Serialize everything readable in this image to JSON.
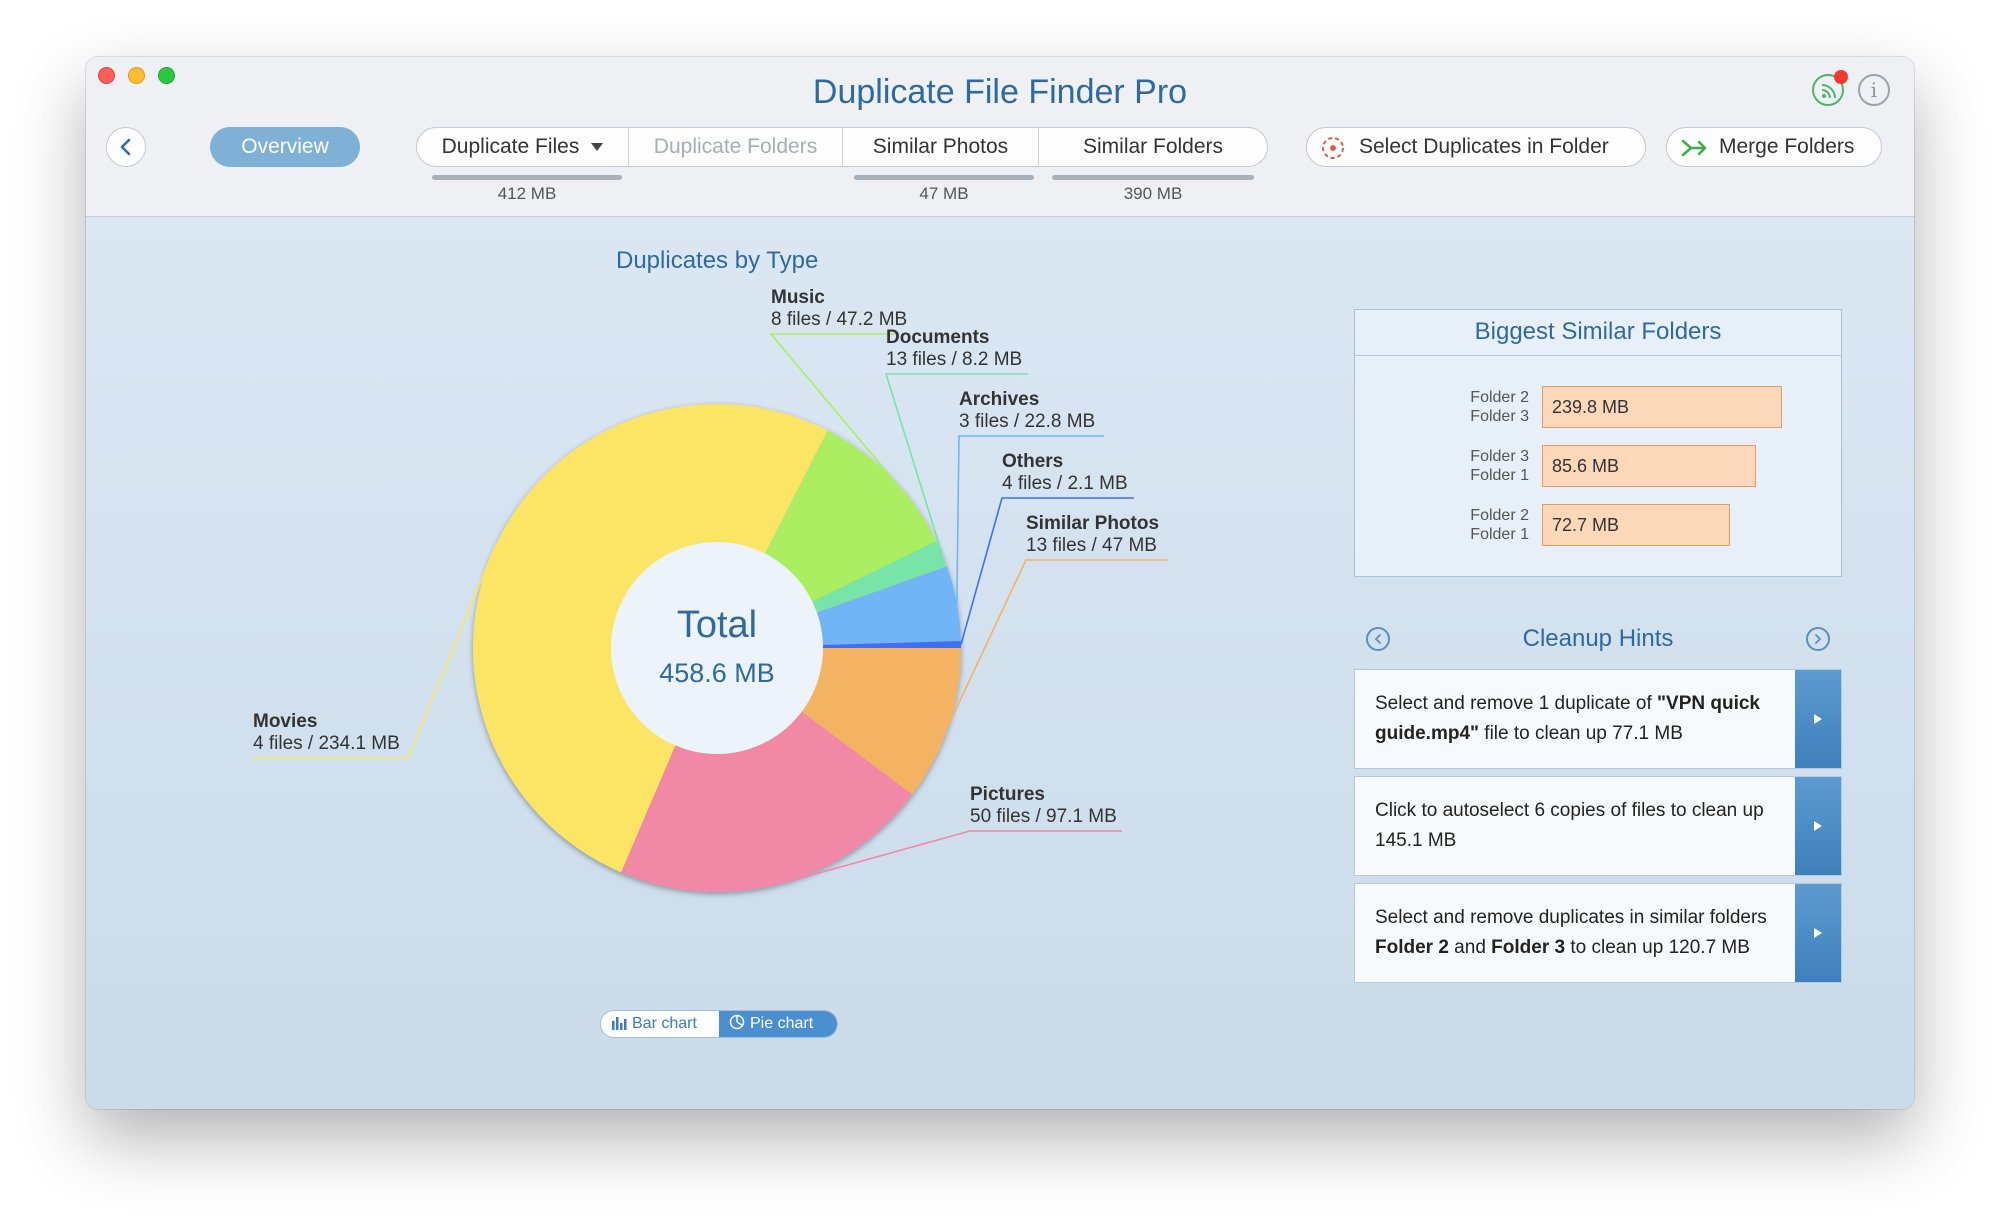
{
  "window": {
    "title": "Duplicate File Finder Pro"
  },
  "toolbar": {
    "overview_label": "Overview",
    "tabs": [
      {
        "label": "Duplicate Files",
        "size": "412 MB",
        "has_dropdown": true,
        "enabled": true
      },
      {
        "label": "Duplicate Folders",
        "size": "",
        "enabled": false
      },
      {
        "label": "Similar Photos",
        "size": "47 MB",
        "enabled": true
      },
      {
        "label": "Similar Folders",
        "size": "390 MB",
        "enabled": true
      }
    ],
    "select_duplicates_label": "Select Duplicates in Folder",
    "merge_folders_label": "Merge Folders"
  },
  "chart_data": {
    "type": "pie",
    "title": "Duplicates by Type",
    "center_label": "Total",
    "center_value": "458.6 MB",
    "slices": [
      {
        "name": "Similar Photos",
        "detail": "13 files / 47 MB",
        "value": 47,
        "color": "#f4b363"
      },
      {
        "name": "Pictures",
        "detail": "50 files / 97.1 MB",
        "value": 97.1,
        "color": "#f088a6"
      },
      {
        "name": "Movies",
        "detail": "4 files / 234.1 MB",
        "value": 234.1,
        "color": "#fce465"
      },
      {
        "name": "Music",
        "detail": "8 files / 47.2 MB",
        "value": 47.2,
        "color": "#acee62"
      },
      {
        "name": "Documents",
        "detail": "13 files / 8.2 MB",
        "value": 8.2,
        "color": "#79e4a8"
      },
      {
        "name": "Archives",
        "detail": "3 files / 22.8 MB",
        "value": 22.8,
        "color": "#70b6f7"
      },
      {
        "name": "Others",
        "detail": "4 files / 2.1 MB",
        "value": 2.1,
        "color": "#3f6ff2"
      }
    ]
  },
  "chart_toggle": {
    "bar_label": "Bar chart",
    "pie_label": "Pie chart",
    "active": "pie"
  },
  "similar_folders": {
    "title": "Biggest Similar Folders",
    "rows": [
      {
        "a": "Folder 2",
        "b": "Folder 3",
        "size": "239.8 MB",
        "value": 239.8
      },
      {
        "a": "Folder 3",
        "b": "Folder 1",
        "size": "85.6 MB",
        "value": 85.6
      },
      {
        "a": "Folder 2",
        "b": "Folder 1",
        "size": "72.7 MB",
        "value": 72.7
      }
    ]
  },
  "hints": {
    "title": "Cleanup Hints",
    "items": [
      {
        "p1": "Select and remove 1 duplicate of ",
        "b1": "\"VPN quick guide.mp4\"",
        "p2": " file to clean up 77.1 MB",
        "b2": "",
        "p3": "",
        "b3": "",
        "p4": ""
      },
      {
        "p1": "Click to autoselect 6 copies of files to clean up 145.1 MB",
        "b1": "",
        "p2": "",
        "b2": "",
        "p3": "",
        "b3": "",
        "p4": ""
      },
      {
        "p1": "Select and remove duplicates in similar folders ",
        "b1": "Folder 2",
        "p2": " and ",
        "b2": "Folder 3",
        "p3": " to clean up 120.7 MB",
        "b3": "",
        "p4": ""
      }
    ]
  }
}
